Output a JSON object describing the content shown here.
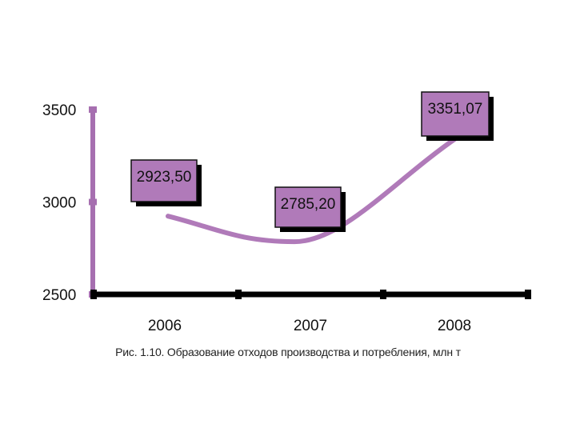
{
  "chart_data": {
    "type": "line",
    "title": "",
    "xlabel": "",
    "ylabel": "",
    "categories": [
      "2006",
      "2007",
      "2008"
    ],
    "series": [
      {
        "values": [
          2923.5,
          2785.2,
          3351.07
        ]
      }
    ],
    "data_labels": [
      "2923,50",
      "2785,20",
      "3351,07"
    ],
    "yticks": [
      2500,
      3000,
      3500
    ],
    "ytick_labels": [
      "2500",
      "3000",
      "3500"
    ],
    "ylim": [
      2500,
      3500
    ],
    "grid": false,
    "legend": "none",
    "colors": {
      "line": "#b07ab9",
      "y_axis": "#a66fb0",
      "x_axis": "#000000",
      "label_fill": "#b07ab9",
      "label_shadow": "#000000"
    }
  },
  "caption": "Рис. 1.10. Образование отходов производства и потребления, млн т"
}
